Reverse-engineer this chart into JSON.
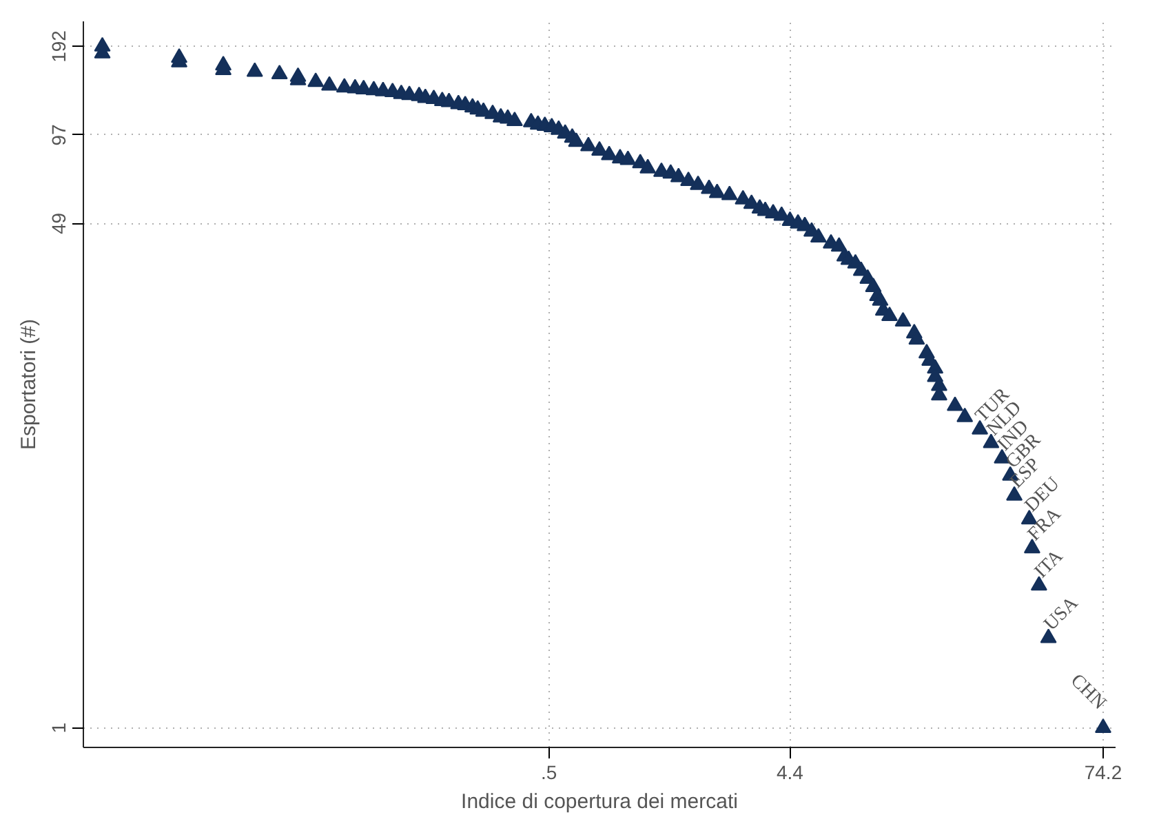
{
  "chart_data": {
    "type": "scatter",
    "xlabel": "Indice di copertura dei mercati",
    "ylabel": "Esportatori (#)",
    "log": "xy",
    "grid": true,
    "marker": "triangle",
    "xlim": [
      0.0075,
      83
    ],
    "ylim": [
      0.86,
      233
    ],
    "xticks": [
      {
        "value": 0.5,
        "label": ".5"
      },
      4.4,
      74.2
    ],
    "yticks": [
      1,
      49,
      97,
      192
    ],
    "series": [
      {
        "color": "#14305a",
        "x": [
          0.0089,
          0.0089,
          0.0178,
          0.0178,
          0.0265,
          0.0265,
          0.0352,
          0.044,
          0.052,
          0.052,
          0.061,
          0.069,
          0.079,
          0.087,
          0.094,
          0.103,
          0.112,
          0.122,
          0.132,
          0.142,
          0.155,
          0.164,
          0.177,
          0.191,
          0.203,
          0.221,
          0.235,
          0.251,
          0.263,
          0.277,
          0.301,
          0.324,
          0.345,
          0.367,
          0.426,
          0.453,
          0.482,
          0.513,
          0.546,
          0.579,
          0.617,
          0.64,
          0.714,
          0.789,
          0.861,
          0.95,
          1.02,
          1.14,
          1.22,
          1.38,
          1.5,
          1.61,
          1.76,
          1.92,
          2.12,
          2.28,
          2.55,
          2.88,
          3.11,
          3.35,
          3.52,
          3.78,
          4.08,
          4.4,
          4.73,
          5.03,
          5.35,
          5.69,
          6.37,
          6.85,
          7.2,
          7.47,
          7.94,
          8.36,
          8.87,
          9.33,
          9.68,
          9.93,
          10.2,
          10.8,
          12.2,
          13.5,
          13.8,
          15.1,
          15.5,
          16.3,
          16.3,
          16.9,
          16.9,
          19.5,
          21.3,
          24.4,
          27.0,
          29.8,
          32.1,
          33.3,
          38.1,
          39.1,
          41.6,
          45.3,
          74.2
        ],
        "values": [
          192,
          182,
          176,
          170,
          166,
          160,
          158,
          155,
          152,
          148,
          146,
          142,
          140,
          139,
          138,
          137,
          136,
          135,
          133,
          132,
          131,
          129,
          128,
          126,
          125,
          123,
          122,
          120,
          118,
          116,
          114,
          111,
          110,
          108,
          107,
          105,
          104,
          103,
          101,
          98,
          95,
          92,
          89,
          86,
          83,
          81,
          80,
          78,
          75,
          73,
          72,
          70,
          68,
          66,
          64,
          62,
          61,
          59,
          57,
          55,
          54,
          53,
          52,
          50,
          49,
          48,
          46,
          44,
          42,
          41,
          38,
          37,
          36,
          34,
          32,
          30,
          28,
          27,
          25,
          24,
          23,
          21,
          20,
          18,
          17,
          16,
          15,
          14,
          13,
          12,
          11,
          10,
          9,
          8,
          7,
          6,
          5,
          4,
          3,
          2,
          1
        ]
      }
    ],
    "annotations": [
      {
        "text": "TUR",
        "x": 24.4,
        "y": 10
      },
      {
        "text": "NLD",
        "x": 27.0,
        "y": 9
      },
      {
        "text": "IND",
        "x": 29.8,
        "y": 8
      },
      {
        "text": "GBR",
        "x": 32.1,
        "y": 7
      },
      {
        "text": "ESP",
        "x": 33.3,
        "y": 6
      },
      {
        "text": "DEU",
        "x": 38.1,
        "y": 5
      },
      {
        "text": "FRA",
        "x": 39.1,
        "y": 4
      },
      {
        "text": "ITA",
        "x": 41.6,
        "y": 3
      },
      {
        "text": "USA",
        "x": 45.3,
        "y": 2
      },
      {
        "text": "CHN",
        "x": 74.2,
        "y": 1
      }
    ]
  }
}
